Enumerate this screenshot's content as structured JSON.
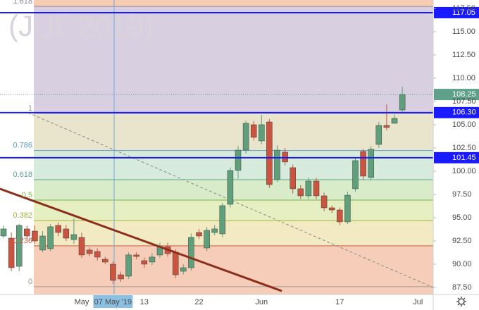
{
  "chart_data": {
    "type": "candlestick",
    "watermark": "(JUL 2019)",
    "categories": [
      null,
      null,
      null,
      null,
      null,
      null,
      null,
      null,
      null,
      null,
      "May",
      null,
      null,
      null,
      "07 May '19",
      null,
      null,
      null,
      "13",
      null,
      null,
      null,
      null,
      null,
      null,
      "22",
      null,
      null,
      null,
      null,
      null,
      null,
      null,
      "Jun",
      null,
      null,
      null,
      null,
      null,
      null,
      null,
      null,
      null,
      "17",
      null,
      null,
      null,
      null,
      null,
      null,
      null,
      null,
      null,
      "Jul"
    ],
    "highlight_category": 14,
    "open": [
      93.03,
      92.8,
      89.77,
      93.79,
      93.56,
      91.52,
      91.67,
      94.17,
      93.79,
      92.65,
      92.88,
      91.52,
      91.36,
      90.53,
      90.0,
      88.86,
      88.71,
      90.99,
      90.38,
      90.23,
      90.99,
      91.89,
      91.29,
      89.24,
      89.62,
      93.41,
      91.74,
      93.41,
      93.26,
      96.44,
      100.08,
      102.27,
      105.0,
      103.26,
      105.3,
      99.09,
      102.05,
      100.38,
      98.11,
      97.35,
      98.94,
      97.35,
      96.06,
      95.83,
      94.55,
      98.11,
      102.12,
      99.32,
      102.88,
      104.92,
      105.15,
      106.59,
      null,
      null
    ],
    "high": [
      94.17,
      93.41,
      94.32,
      94.17,
      94.17,
      93.56,
      94.32,
      94.5,
      94.2,
      94.92,
      93.4,
      91.8,
      91.7,
      90.8,
      90.3,
      89.2,
      91.3,
      91.3,
      90.7,
      91.2,
      92.3,
      92.3,
      91.6,
      90.0,
      93.3,
      93.8,
      94.0,
      94.2,
      96.6,
      100.4,
      102.7,
      105.4,
      105.4,
      106.06,
      105.6,
      102.8,
      102.5,
      100.7,
      98.5,
      99.3,
      99.3,
      97.7,
      96.3,
      96.1,
      97.8,
      101.5,
      102.4,
      102.7,
      105.3,
      107.2,
      106.1,
      109.09,
      null,
      null
    ],
    "low": [
      92.8,
      89.24,
      89.24,
      92.65,
      92.2,
      91.29,
      91.4,
      93.0,
      92.5,
      92.2,
      90.7,
      90.9,
      90.4,
      90.0,
      87.9,
      88.1,
      88.4,
      90.5,
      89.6,
      89.9,
      90.7,
      90.8,
      88.5,
      88.9,
      89.3,
      92.7,
      91.4,
      93.1,
      92.9,
      96.1,
      99.2,
      101.9,
      103.3,
      102.9,
      98.2,
      98.8,
      100.6,
      97.6,
      97.0,
      97.0,
      97.0,
      95.7,
      95.5,
      94.2,
      94.3,
      97.8,
      99.1,
      99.0,
      102.5,
      104.4,
      105.3,
      106.3,
      null,
      null
    ],
    "close": [
      93.79,
      89.62,
      94.17,
      93.03,
      92.5,
      93.03,
      94.02,
      93.41,
      92.8,
      93.18,
      90.99,
      91.14,
      90.76,
      90.23,
      88.26,
      88.41,
      90.99,
      90.83,
      90.0,
      90.76,
      91.89,
      91.14,
      88.86,
      89.62,
      92.88,
      93.03,
      93.64,
      93.79,
      96.29,
      100.08,
      102.27,
      105.15,
      103.64,
      105.0,
      98.56,
      102.27,
      100.99,
      98.11,
      97.35,
      98.94,
      97.35,
      96.06,
      95.83,
      94.55,
      97.42,
      101.14,
      99.47,
      102.35,
      104.92,
      104.7,
      105.68,
      108.25,
      null,
      null
    ],
    "up_color": "#5f9f7a",
    "down_color": "#c9543f",
    "ylim": [
      86.74,
      118.41
    ],
    "yticks": [
      {
        "value": 87.5,
        "label": "87.50"
      },
      {
        "value": 90,
        "label": "90.00"
      },
      {
        "value": 92.5,
        "label": "92.50"
      },
      {
        "value": 95,
        "label": "95.00"
      },
      {
        "value": 97.5,
        "label": "97.50"
      },
      {
        "value": 100,
        "label": "100.00"
      },
      {
        "value": 102.5,
        "label": "102.50"
      },
      {
        "value": 105,
        "label": "105.00"
      },
      {
        "value": 107.5,
        "label": "107.50"
      },
      {
        "value": 110,
        "label": "110.00"
      },
      {
        "value": 112.5,
        "label": "112.50"
      },
      {
        "value": 115,
        "label": "115.00"
      },
      {
        "value": 117.5,
        "label": "117.50"
      }
    ],
    "price_lines": [
      {
        "price": 117.05,
        "color": "#1a1aff"
      },
      {
        "price": {
          "value": 106.3,
          "label": "106.30"
        },
        "color": "#1a1aff"
      },
      {
        "price": 101.45,
        "color": "#1a1aff"
      }
    ],
    "last_price_color": "#5fa08a",
    "fib_range": [
      87.58,
      106.21
    ],
    "fib_levels": [
      1.618,
      1,
      0.786,
      0.618,
      0.5,
      0.382,
      0.236,
      0
    ],
    "fib_line_colors": [
      "#8c86a6",
      "#9a9a9a",
      "#5b9cc9",
      "#5aa58a",
      "#7cb342",
      "#a4b43a",
      "#d05a45",
      "#9a9a9a"
    ],
    "fib_band_colors": [
      "#f6cdb2",
      "#d8d0e0",
      "#e9e4cc",
      "#d6ebdc",
      "#d9ecc9",
      "#e5efc2",
      "#f1eac2",
      "#f5cdb8",
      "#f5cdb8"
    ]
  }
}
